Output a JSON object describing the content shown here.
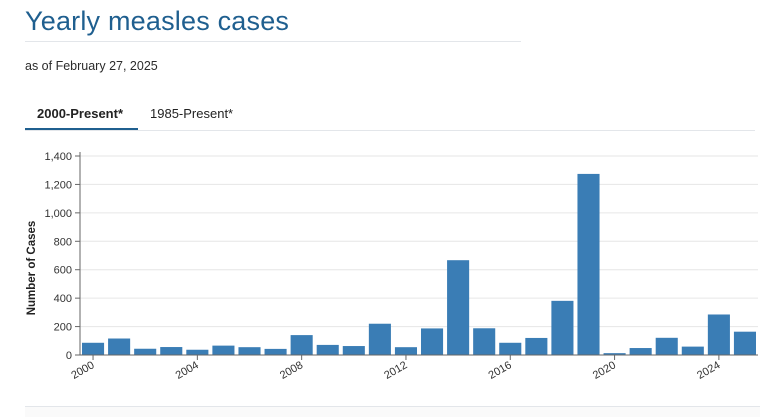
{
  "header": {
    "title": "Yearly measles cases",
    "as_of": "as of February 27, 2025"
  },
  "tabs": [
    {
      "label": "2000-Present*",
      "active": true
    },
    {
      "label": "1985-Present*",
      "active": false
    }
  ],
  "colors": {
    "bar": "#3a7db5",
    "accent": "#1f5f8f"
  },
  "chart_data": {
    "type": "bar",
    "ylabel": "Number of Cases",
    "xlabel": "",
    "ylim": [
      0,
      1400
    ],
    "yticks": [
      0,
      200,
      400,
      600,
      800,
      1000,
      1200,
      1400
    ],
    "ytick_labels": [
      "0",
      "200",
      "400",
      "600",
      "800",
      "1,000",
      "1,200",
      "1,400"
    ],
    "xtick_labels": [
      "2000",
      "2004",
      "2008",
      "2012",
      "2016",
      "2020",
      "2024"
    ],
    "grid": "horizontal",
    "categories": [
      "2000",
      "2001",
      "2002",
      "2003",
      "2004",
      "2005",
      "2006",
      "2007",
      "2008",
      "2009",
      "2010",
      "2011",
      "2012",
      "2013",
      "2014",
      "2015",
      "2016",
      "2017",
      "2018",
      "2019",
      "2020",
      "2021",
      "2022",
      "2023",
      "2024",
      "2025"
    ],
    "values": [
      86,
      116,
      44,
      56,
      37,
      66,
      55,
      43,
      140,
      71,
      63,
      220,
      55,
      187,
      667,
      188,
      86,
      120,
      381,
      1274,
      13,
      49,
      121,
      59,
      285,
      164
    ]
  }
}
